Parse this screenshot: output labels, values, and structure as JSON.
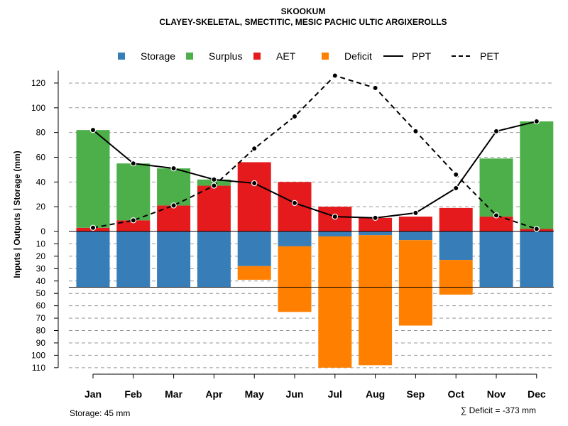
{
  "colors": {
    "storage": "#377EB8",
    "surplus": "#4DAF4A",
    "aet": "#E41A1C",
    "deficit": "#FF7F00",
    "line": "#000000",
    "grid": "#999999"
  },
  "chart_data": {
    "type": "bar",
    "title": "SKOOKUM",
    "subtitle": "CLAYEY-SKELETAL, SMECTITIC, MESIC PACHIC ULTIC ARGIXEROLLS",
    "ylabel": "Inputs | Outputs | Storage    (mm)",
    "ylim": [
      -110,
      130
    ],
    "yticks_up": [
      "0",
      "20",
      "40",
      "60",
      "80",
      "100",
      "120"
    ],
    "yticks_down": [
      "10",
      "20",
      "30",
      "40",
      "50",
      "60",
      "70",
      "80",
      "90",
      "100",
      "110"
    ],
    "categories": [
      "Jan",
      "Feb",
      "Mar",
      "Apr",
      "May",
      "Jun",
      "Jul",
      "Aug",
      "Sep",
      "Oct",
      "Nov",
      "Dec"
    ],
    "legend": [
      "Storage",
      "Surplus",
      "AET",
      "Deficit",
      "PPT",
      "PET"
    ],
    "series": [
      {
        "name": "AET",
        "values": [
          3,
          9,
          21,
          37,
          56,
          40,
          20,
          11,
          12,
          19,
          12,
          2
        ]
      },
      {
        "name": "Surplus",
        "values": [
          79,
          46,
          30,
          5,
          0,
          0,
          0,
          0,
          0,
          0,
          47,
          87
        ]
      },
      {
        "name": "Storage",
        "values": [
          45,
          45,
          45,
          45,
          28,
          12,
          4,
          3,
          7,
          23,
          45,
          45
        ]
      },
      {
        "name": "Deficit",
        "values": [
          0,
          0,
          0,
          0,
          11,
          53,
          106,
          105,
          69,
          28,
          0,
          0
        ]
      },
      {
        "name": "PPT",
        "values": [
          82,
          55,
          51,
          42,
          39,
          23,
          12,
          11,
          15,
          35,
          81,
          89
        ]
      },
      {
        "name": "PET",
        "values": [
          3,
          9,
          21,
          37,
          67,
          93,
          126,
          116,
          81,
          46,
          13,
          2
        ]
      }
    ],
    "storage_capacity": 45
  },
  "footer": {
    "storage_note": "Storage: 45 mm",
    "deficit_note": "∑ Deficit = -373 mm"
  }
}
